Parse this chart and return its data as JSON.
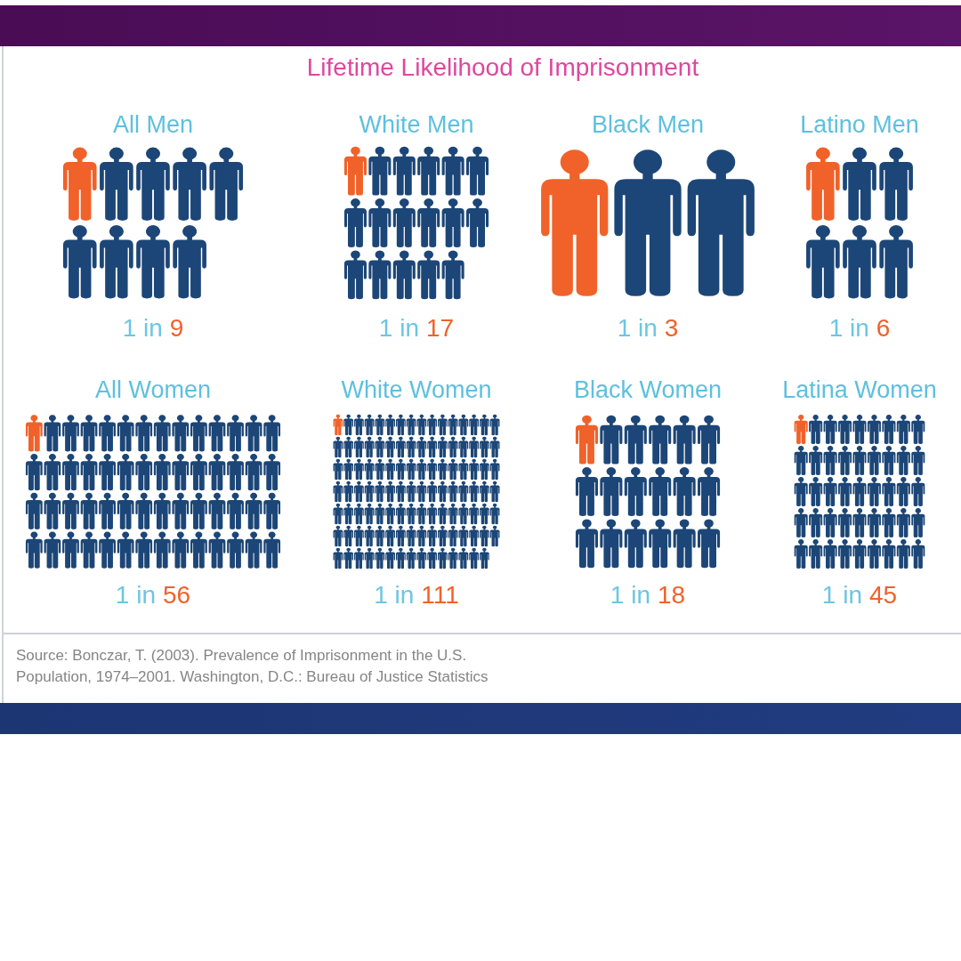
{
  "chart_data": [
    {
      "type": "other",
      "title": "Lifetime Likelihood of Imprisonment",
      "categories": [
        "All Men",
        "White Men",
        "Black Men",
        "Latino Men"
      ],
      "series": [
        {
          "color": "#f0622a",
          "values": [
            1,
            1,
            1,
            1
          ],
          "value_labels": [
            "1 in",
            "1 in",
            "1 in",
            "1 in"
          ]
        },
        {
          "color": "#1c4677",
          "values": [
            9,
            17,
            3,
            6
          ],
          "value_labels": [
            "9",
            "17",
            "3",
            "6"
          ]
        }
      ]
    },
    {
      "type": "other",
      "categories": [
        "All Women",
        "White Women",
        "Black Women",
        "Latina Women"
      ],
      "series": [
        {
          "color": "#f0622a",
          "values": [
            1,
            1,
            1,
            1
          ],
          "value_labels": [
            "1 in",
            "1 in",
            "1 in",
            "1 in"
          ]
        },
        {
          "color": "#1c4677",
          "values": [
            56,
            111,
            18,
            45
          ],
          "value_labels": [
            "56",
            "111",
            "18",
            "45"
          ]
        }
      ],
      "annotations": [
        "Source: Bonczar, T. (2003). Prevalence of Imprisonment in the U.S. Population, 1974–2001. Washington, D.C.: Bureau of Justice Statistics"
      ]
    }
  ]
}
